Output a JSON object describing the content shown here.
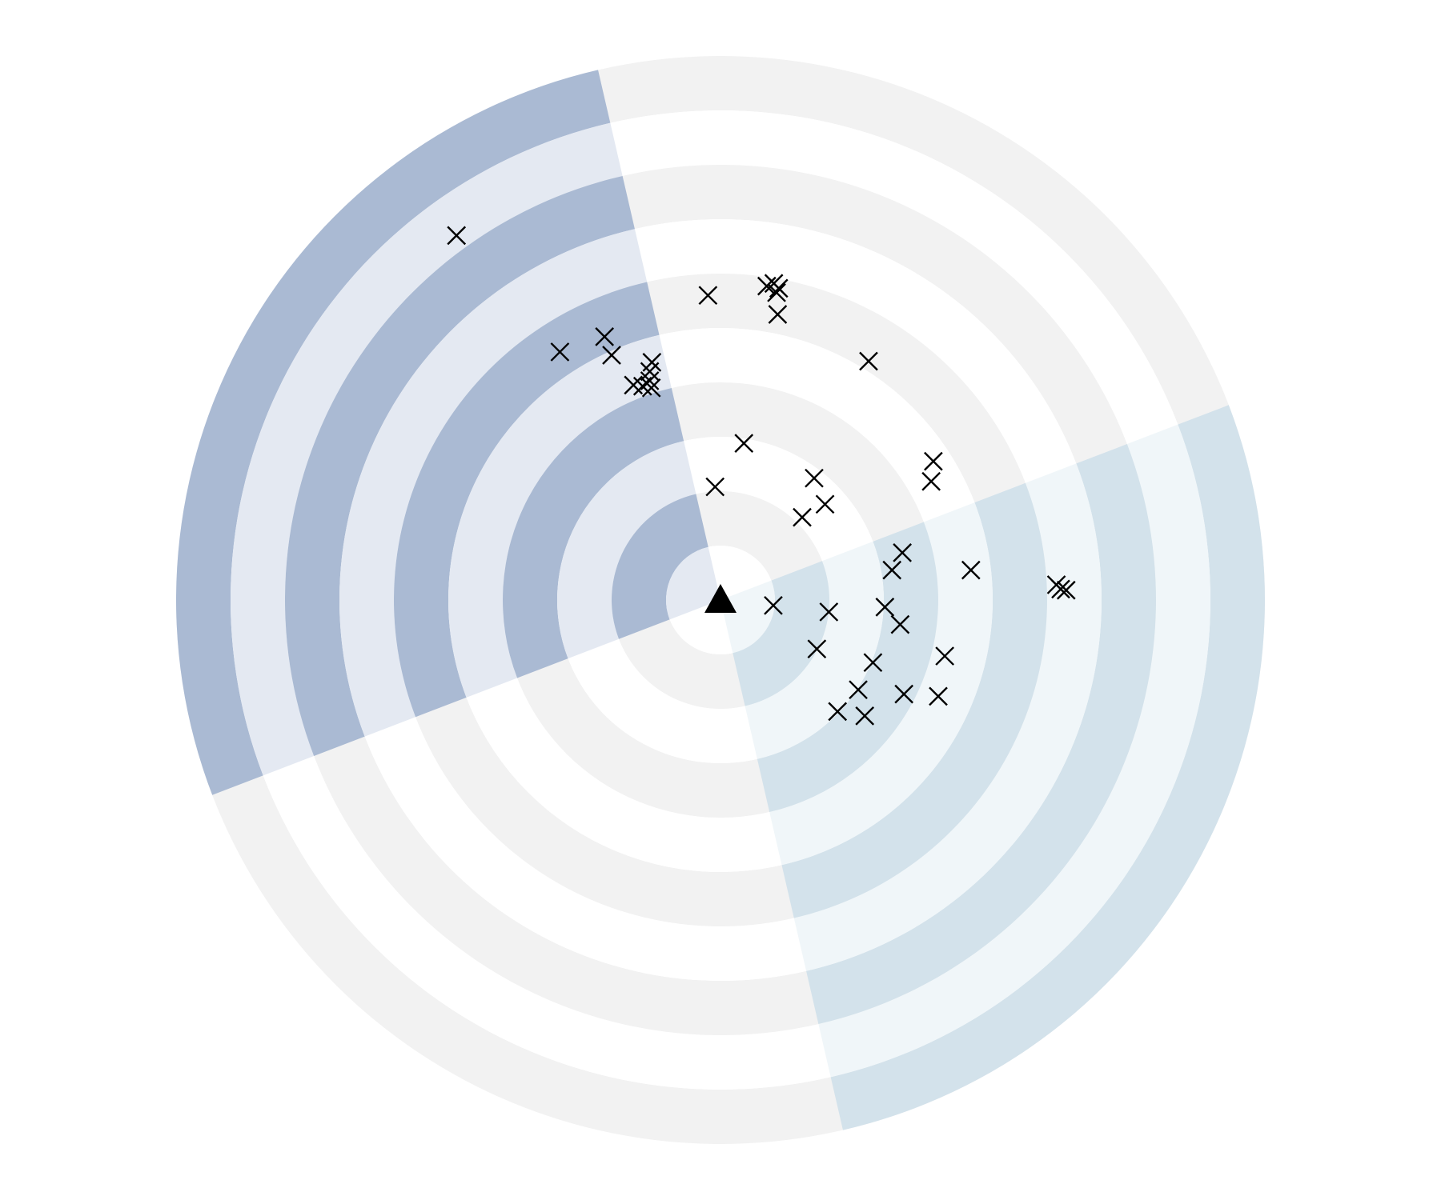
{
  "chart_data": {
    "type": "scatter",
    "title": "",
    "xlabel": "",
    "ylabel": "",
    "grid": false,
    "radial": {
      "ring_count": 10,
      "max_radius": 10,
      "ring_colors": [
        "#f2f2f2",
        "#ffffff"
      ],
      "sectors": [
        {
          "name": "",
          "start_angle": 103,
          "end_angle": 201,
          "colors": [
            "#aabad3",
            "#e4e9f2"
          ]
        },
        {
          "name": "",
          "start_angle": 283,
          "end_angle": 381,
          "colors": [
            "#d3e2eb",
            "#f0f6f9"
          ]
        }
      ]
    },
    "center_marker": {
      "x": 0,
      "y": 0,
      "shape": "triangle",
      "color": "#000000"
    },
    "series": [
      {
        "marker": "x",
        "color": "#000000",
        "points": [
          {
            "x": -4.85,
            "y": 6.7
          },
          {
            "x": -0.23,
            "y": 5.6
          },
          {
            "x": 0.85,
            "y": 5.77
          },
          {
            "x": 0.98,
            "y": 5.82
          },
          {
            "x": 1.07,
            "y": 5.73
          },
          {
            "x": 1.03,
            "y": 5.65
          },
          {
            "x": 1.05,
            "y": 5.25
          },
          {
            "x": 2.72,
            "y": 4.39
          },
          {
            "x": -2.95,
            "y": 4.56
          },
          {
            "x": -2.13,
            "y": 4.84
          },
          {
            "x": -2.0,
            "y": 4.5
          },
          {
            "x": -1.26,
            "y": 4.37
          },
          {
            "x": -1.3,
            "y": 4.2
          },
          {
            "x": -1.3,
            "y": 4.03
          },
          {
            "x": -1.6,
            "y": 3.95
          },
          {
            "x": -1.43,
            "y": 3.93
          },
          {
            "x": -1.27,
            "y": 3.9
          },
          {
            "x": 0.43,
            "y": 2.88
          },
          {
            "x": -0.1,
            "y": 2.08
          },
          {
            "x": 1.72,
            "y": 2.24
          },
          {
            "x": 1.92,
            "y": 1.76
          },
          {
            "x": 1.5,
            "y": 1.52
          },
          {
            "x": 3.91,
            "y": 2.55
          },
          {
            "x": 3.87,
            "y": 2.18
          },
          {
            "x": 3.34,
            "y": 0.87
          },
          {
            "x": 3.15,
            "y": 0.55
          },
          {
            "x": 4.6,
            "y": 0.55
          },
          {
            "x": 6.17,
            "y": 0.28
          },
          {
            "x": 6.25,
            "y": 0.2
          },
          {
            "x": 6.35,
            "y": 0.18
          },
          {
            "x": 0.97,
            "y": -0.1
          },
          {
            "x": 1.99,
            "y": -0.22
          },
          {
            "x": 3.02,
            "y": -0.13
          },
          {
            "x": 3.3,
            "y": -0.45
          },
          {
            "x": 1.77,
            "y": -0.9
          },
          {
            "x": 2.8,
            "y": -1.15
          },
          {
            "x": 4.12,
            "y": -1.03
          },
          {
            "x": 2.53,
            "y": -1.65
          },
          {
            "x": 3.37,
            "y": -1.73
          },
          {
            "x": 4.0,
            "y": -1.77
          },
          {
            "x": 2.15,
            "y": -2.05
          },
          {
            "x": 2.65,
            "y": -2.13
          }
        ]
      }
    ]
  }
}
